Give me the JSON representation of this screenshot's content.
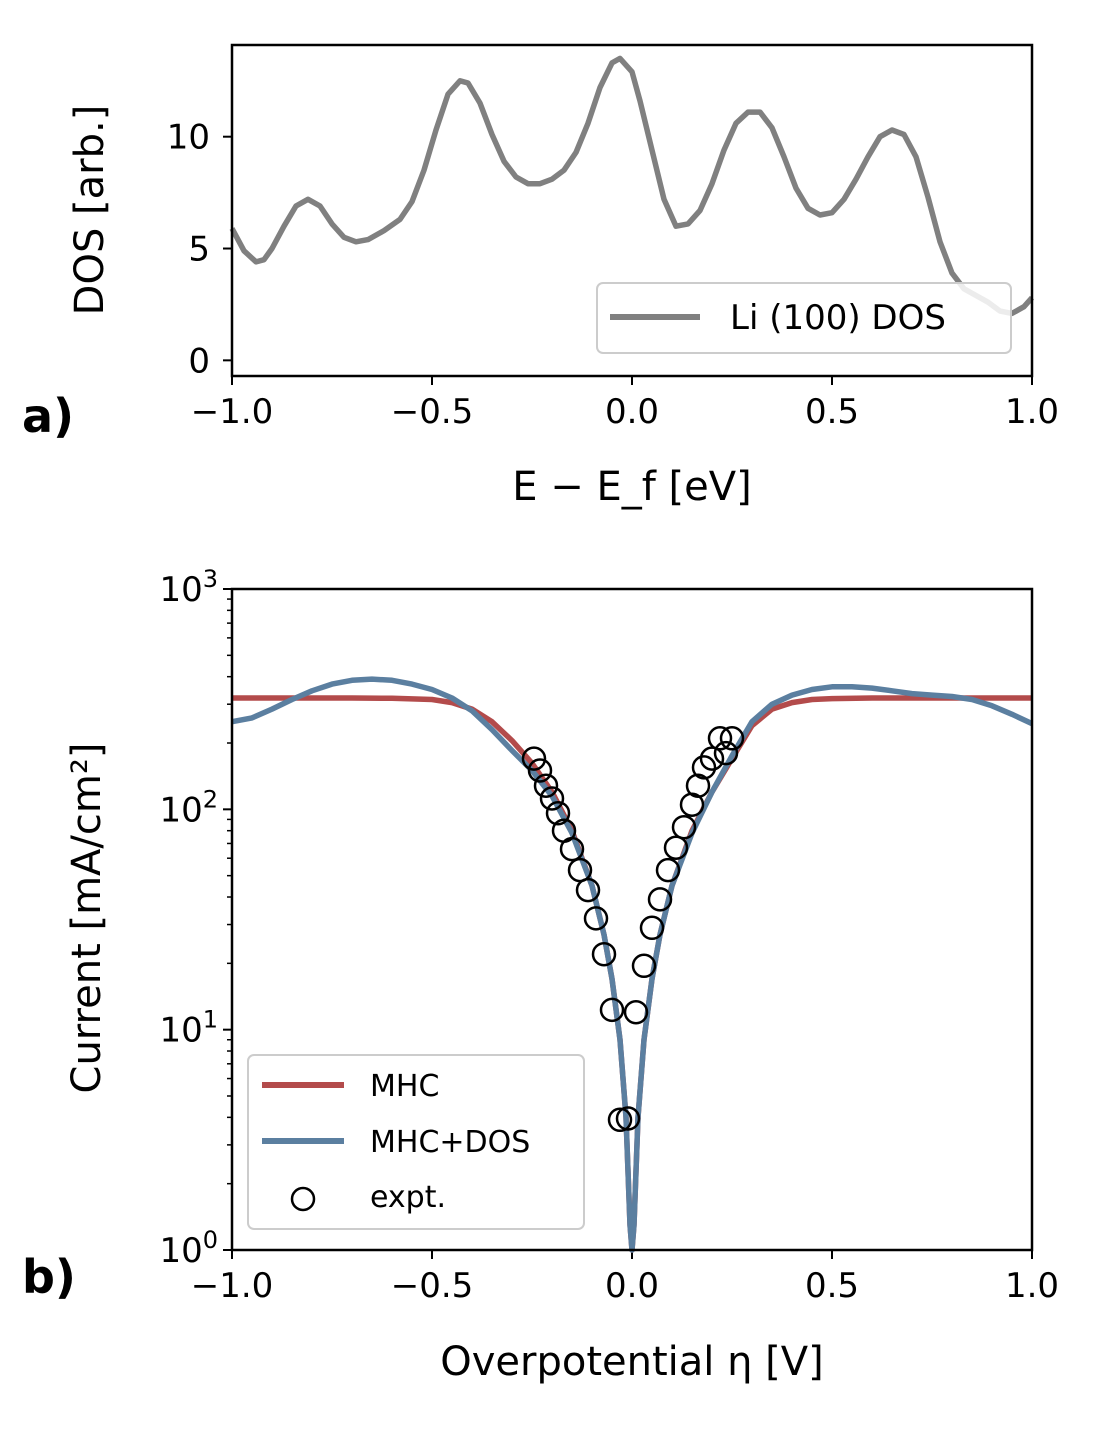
{
  "figure": {
    "panel_a_label": "a)",
    "panel_b_label": "b)"
  },
  "chart_data": [
    {
      "id": "dos",
      "type": "line",
      "title": "",
      "xlabel": "E − E_f [eV]",
      "ylabel": "DOS [arb.]",
      "xlim": [
        -1.0,
        1.0
      ],
      "ylim": [
        -0.7,
        14.1
      ],
      "xticks": [
        -1.0,
        -0.5,
        0.0,
        0.5,
        1.0
      ],
      "xtick_labels": [
        "−1.0",
        "−0.5",
        "0.0",
        "0.5",
        "1.0"
      ],
      "yticks": [
        0,
        5,
        10
      ],
      "ytick_labels": [
        "0",
        "5",
        "10"
      ],
      "legend_position": "lower-right",
      "series": [
        {
          "name": "Li (100) DOS",
          "color": "#808080",
          "x": [
            -1.0,
            -0.97,
            -0.94,
            -0.92,
            -0.9,
            -0.87,
            -0.84,
            -0.81,
            -0.78,
            -0.75,
            -0.72,
            -0.69,
            -0.66,
            -0.62,
            -0.58,
            -0.55,
            -0.52,
            -0.49,
            -0.46,
            -0.43,
            -0.41,
            -0.38,
            -0.35,
            -0.32,
            -0.29,
            -0.26,
            -0.23,
            -0.2,
            -0.17,
            -0.14,
            -0.11,
            -0.08,
            -0.05,
            -0.03,
            0.0,
            0.02,
            0.05,
            0.08,
            0.11,
            0.14,
            0.17,
            0.2,
            0.23,
            0.26,
            0.29,
            0.32,
            0.35,
            0.38,
            0.41,
            0.44,
            0.47,
            0.5,
            0.53,
            0.56,
            0.59,
            0.62,
            0.65,
            0.68,
            0.71,
            0.74,
            0.77,
            0.8,
            0.83,
            0.86,
            0.89,
            0.92,
            0.95,
            0.98,
            1.0
          ],
          "y": [
            5.9,
            4.9,
            4.4,
            4.5,
            5.0,
            6.0,
            6.9,
            7.2,
            6.9,
            6.1,
            5.5,
            5.3,
            5.4,
            5.8,
            6.3,
            7.1,
            8.5,
            10.3,
            11.9,
            12.5,
            12.4,
            11.5,
            10.1,
            8.9,
            8.2,
            7.9,
            7.9,
            8.1,
            8.5,
            9.3,
            10.6,
            12.2,
            13.3,
            13.5,
            12.9,
            11.6,
            9.4,
            7.2,
            6.0,
            6.1,
            6.7,
            7.9,
            9.4,
            10.6,
            11.1,
            11.1,
            10.4,
            9.1,
            7.7,
            6.8,
            6.5,
            6.6,
            7.2,
            8.1,
            9.1,
            10.0,
            10.3,
            10.1,
            9.1,
            7.3,
            5.3,
            3.9,
            3.2,
            2.9,
            2.6,
            2.2,
            2.1,
            2.4,
            2.8
          ]
        }
      ]
    },
    {
      "id": "current",
      "type": "line",
      "title": "",
      "xlabel": "Overpotential η [V]",
      "ylabel": "Current [mA/cm²]",
      "xlim": [
        -1.0,
        1.0
      ],
      "ylim": [
        1,
        1000
      ],
      "yscale": "log",
      "xticks": [
        -1.0,
        -0.5,
        0.0,
        0.5,
        1.0
      ],
      "xtick_labels": [
        "−1.0",
        "−0.5",
        "0.0",
        "0.5",
        "1.0"
      ],
      "ytick_values": [
        1,
        10,
        100,
        1000
      ],
      "ytick_labels": [
        {
          "base": "10",
          "exp": "0"
        },
        {
          "base": "10",
          "exp": "1"
        },
        {
          "base": "10",
          "exp": "2"
        },
        {
          "base": "10",
          "exp": "3"
        }
      ],
      "legend_position": "lower-left",
      "series": [
        {
          "name": "MHC",
          "color": "#b34b4b",
          "x": [
            -1.0,
            -0.9,
            -0.8,
            -0.7,
            -0.6,
            -0.5,
            -0.45,
            -0.4,
            -0.35,
            -0.3,
            -0.25,
            -0.2,
            -0.15,
            -0.1,
            -0.07,
            -0.05,
            -0.03,
            -0.015,
            -0.005,
            0.0,
            0.005,
            0.015,
            0.03,
            0.05,
            0.07,
            0.1,
            0.15,
            0.2,
            0.25,
            0.3,
            0.35,
            0.4,
            0.45,
            0.5,
            0.6,
            0.7,
            0.8,
            0.9,
            1.0
          ],
          "y": [
            320,
            320,
            320,
            320,
            319,
            315,
            305,
            285,
            250,
            205,
            162,
            120,
            80,
            45,
            27,
            17,
            9,
            4,
            1.3,
            1,
            1.3,
            4,
            9,
            17,
            27,
            45,
            80,
            120,
            170,
            240,
            285,
            305,
            315,
            318,
            320,
            320,
            320,
            320,
            320
          ]
        },
        {
          "name": "MHC+DOS",
          "color": "#5b7fa0",
          "x": [
            -1.0,
            -0.95,
            -0.9,
            -0.85,
            -0.8,
            -0.75,
            -0.7,
            -0.65,
            -0.6,
            -0.55,
            -0.5,
            -0.45,
            -0.4,
            -0.35,
            -0.3,
            -0.25,
            -0.2,
            -0.15,
            -0.1,
            -0.07,
            -0.05,
            -0.03,
            -0.015,
            -0.005,
            0.0,
            0.005,
            0.015,
            0.03,
            0.05,
            0.07,
            0.1,
            0.15,
            0.2,
            0.25,
            0.3,
            0.35,
            0.4,
            0.45,
            0.5,
            0.55,
            0.6,
            0.65,
            0.7,
            0.75,
            0.8,
            0.85,
            0.9,
            0.95,
            1.0
          ],
          "y": [
            250,
            260,
            285,
            315,
            345,
            370,
            385,
            390,
            385,
            370,
            350,
            320,
            280,
            230,
            185,
            150,
            115,
            78,
            45,
            27,
            17,
            9,
            4,
            1.3,
            1,
            1.3,
            4,
            9,
            17,
            27,
            45,
            78,
            120,
            175,
            250,
            300,
            330,
            350,
            360,
            360,
            355,
            345,
            335,
            330,
            325,
            315,
            295,
            270,
            245
          ]
        },
        {
          "name": "expt.",
          "type": "scatter",
          "marker": "open-circle",
          "color": "#000000",
          "x": [
            -0.245,
            -0.23,
            -0.215,
            -0.2,
            -0.185,
            -0.17,
            -0.15,
            -0.13,
            -0.11,
            -0.09,
            -0.07,
            -0.05,
            -0.03,
            -0.01,
            0.01,
            0.03,
            0.05,
            0.07,
            0.09,
            0.11,
            0.13,
            0.15,
            0.165,
            0.18,
            0.2,
            0.22,
            0.235,
            0.25
          ],
          "y": [
            170,
            150,
            128,
            112,
            96,
            80,
            66,
            53,
            43,
            32,
            22,
            12.3,
            3.9,
            3.95,
            12,
            19.5,
            29,
            39,
            53,
            67,
            83,
            105,
            128,
            155,
            170,
            210,
            180,
            210
          ]
        }
      ]
    }
  ]
}
